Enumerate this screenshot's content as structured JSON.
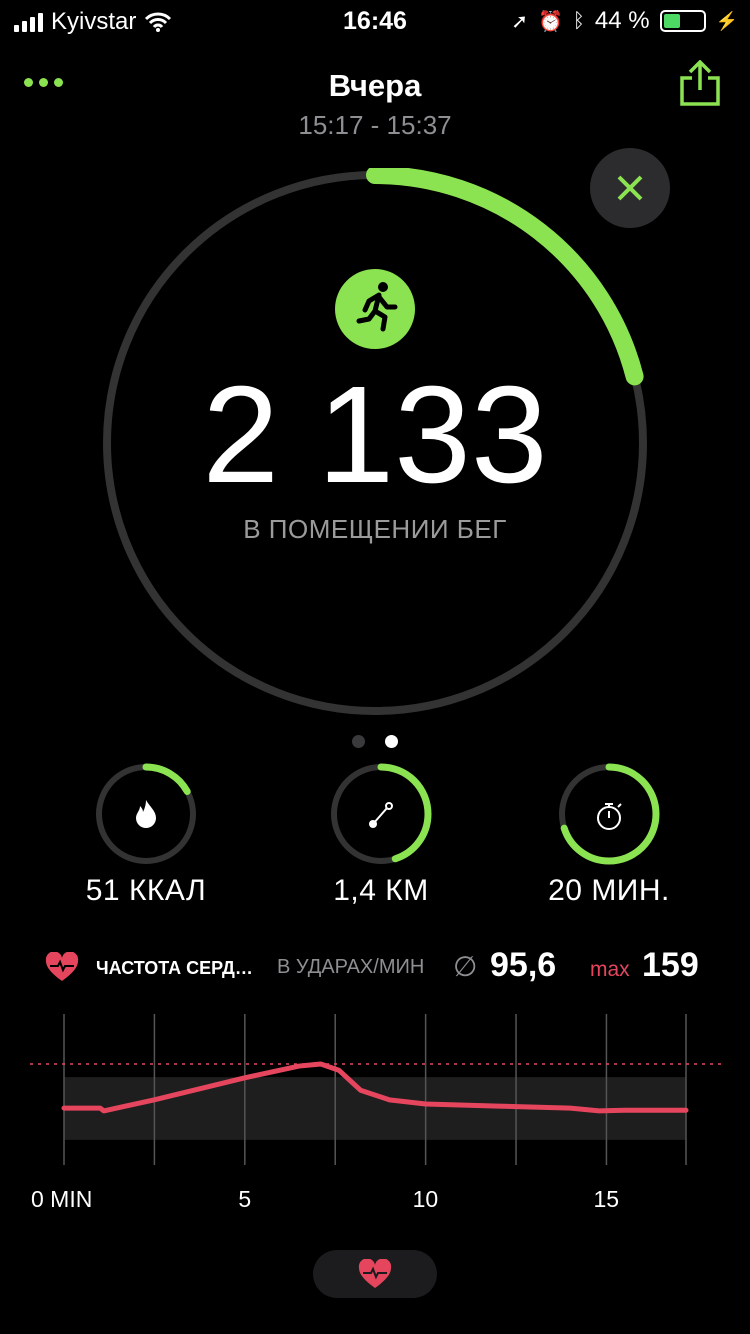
{
  "status_bar": {
    "carrier": "Kyivstar",
    "time": "16:46",
    "battery": "44 %",
    "battery_level": 0.44,
    "icons": [
      "signal-icon",
      "wifi-icon",
      "location-icon",
      "alarm-icon",
      "bluetooth-icon",
      "battery-icon",
      "charging-icon"
    ]
  },
  "header": {
    "title": "Вчера",
    "time_range": "15:17 - 15:37",
    "more_icon": "ellipsis-icon",
    "share_icon": "share-icon",
    "close_icon": "close-icon"
  },
  "workout": {
    "value": "2 133",
    "type": "В ПОМЕЩЕНИИ БЕГ",
    "icon": "running-icon",
    "ring_progress": 0.21
  },
  "page_dots": {
    "count": 2,
    "active": 1
  },
  "metrics": [
    {
      "value": "51 ККАЛ",
      "icon": "flame-icon",
      "progress": 0.17
    },
    {
      "value": "1,4 КМ",
      "icon": "distance-icon",
      "progress": 0.45
    },
    {
      "value": "20 МИН.",
      "icon": "stopwatch-icon",
      "progress": 0.7
    }
  ],
  "heart_rate": {
    "label": "ЧАСТОТА СЕРД…",
    "unit": "В УДАРАХ/МИН",
    "avg_symbol": "∅",
    "avg": "95,6",
    "max_label": "max",
    "max": "159"
  },
  "colors": {
    "accent": "#8ce352",
    "heart": "#e5465e",
    "track": "#333333"
  },
  "chart_data": {
    "type": "line",
    "xlabel": "",
    "ylabel": "",
    "x_tick_labels": [
      "0 MIN",
      "5",
      "10",
      "15"
    ],
    "x_ticks": [
      0,
      5,
      10,
      15
    ],
    "xlim": [
      0,
      17.2
    ],
    "grid_x": [
      0,
      2.5,
      5,
      7.5,
      10,
      12.5,
      15,
      17.2
    ],
    "max_line": 159,
    "zone": [
      49,
      140
    ],
    "series": [
      {
        "x": [
          0,
          1,
          1.1,
          2.5,
          5,
          6.5,
          7.1,
          7.6,
          8.2,
          9,
          10,
          12,
          14,
          14.8,
          15.5,
          17.2
        ],
        "y": [
          95,
          95,
          91,
          107,
          139,
          156,
          159,
          150,
          121,
          107,
          101,
          98,
          95,
          91,
          92,
          92
        ]
      }
    ]
  },
  "bottom": {
    "tab_icon": "heart-rate-icon"
  }
}
